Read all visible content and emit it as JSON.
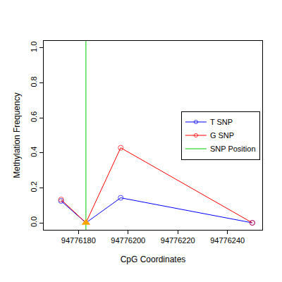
{
  "chart_data": {
    "type": "line",
    "x_label": "CpG Coordinates",
    "y_label": "Methylation Frequency",
    "xlim": [
      94776166,
      94776254
    ],
    "xticks": [
      94776180,
      94776200,
      94776220,
      94776240
    ],
    "ylim": [
      -0.04,
      1.04
    ],
    "yticks": [
      {
        "value": 0,
        "label": "0.0"
      },
      {
        "value": 0.2,
        "label": "0.2"
      },
      {
        "value": 0.4,
        "label": "0.4"
      },
      {
        "value": 0.6,
        "label": "0.6"
      },
      {
        "value": 0.8,
        "label": "0.8"
      },
      {
        "value": 1,
        "label": "1.0"
      }
    ],
    "grid": false,
    "legend": "right",
    "series": [
      {
        "name": "T SNP",
        "color": "#0000ff",
        "marker": "circle-open",
        "x": [
          94776173,
          94776183,
          94776197,
          94776250
        ],
        "values": [
          0.125,
          0,
          0.143,
          0
        ]
      },
      {
        "name": "G SNP",
        "color": "#ff0000",
        "marker": "circle-open",
        "x": [
          94776173,
          94776183,
          94776197,
          94776250
        ],
        "values": [
          0.133,
          0,
          0.429,
          0
        ]
      },
      {
        "name": "SNP Position",
        "color": "#00cc00",
        "type": "vline",
        "x": [
          94776183
        ]
      }
    ],
    "snp_marker": {
      "x": 94776183,
      "y": 0,
      "color": "#ffa500",
      "marker": "triangle-up"
    }
  }
}
